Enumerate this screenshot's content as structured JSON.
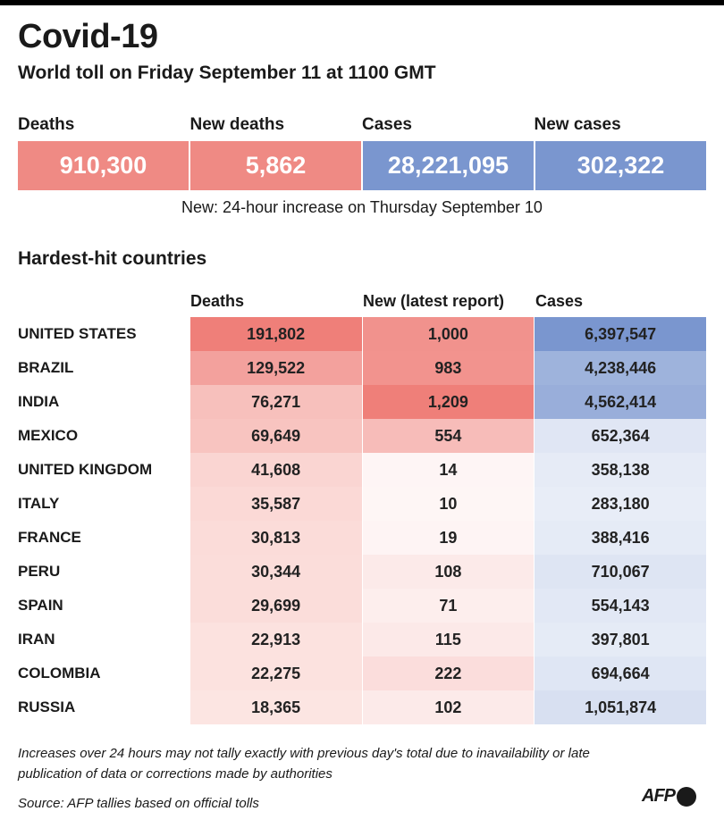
{
  "header": {
    "title": "Covid-19",
    "subtitle": "World toll on Friday September 11 at 1100 GMT"
  },
  "summary": {
    "items": [
      {
        "label": "Deaths",
        "value": "910,300",
        "color": "#ef8a84"
      },
      {
        "label": "New deaths",
        "value": "5,862",
        "color": "#ef8a84"
      },
      {
        "label": "Cases",
        "value": "28,221,095",
        "color": "#7a96cf"
      },
      {
        "label": "New cases",
        "value": "302,322",
        "color": "#7a96cf"
      }
    ],
    "note": "New: 24-hour increase on Thursday September 10"
  },
  "section_title": "Hardest-hit countries",
  "chart_data": {
    "type": "table",
    "title": "Hardest-hit countries",
    "columns": [
      "Deaths",
      "New (latest report)",
      "Cases"
    ],
    "rows": [
      {
        "country": "UNITED STATES",
        "deaths": "191,802",
        "new": "1,000",
        "cases": "6,397,547"
      },
      {
        "country": "BRAZIL",
        "deaths": "129,522",
        "new": "983",
        "cases": "4,238,446"
      },
      {
        "country": "INDIA",
        "deaths": "76,271",
        "new": "1,209",
        "cases": "4,562,414"
      },
      {
        "country": "MEXICO",
        "deaths": "69,649",
        "new": "554",
        "cases": "652,364"
      },
      {
        "country": "UNITED KINGDOM",
        "deaths": "41,608",
        "new": "14",
        "cases": "358,138"
      },
      {
        "country": "ITALY",
        "deaths": "35,587",
        "new": "10",
        "cases": "283,180"
      },
      {
        "country": "FRANCE",
        "deaths": "30,813",
        "new": "19",
        "cases": "388,416"
      },
      {
        "country": "PERU",
        "deaths": "30,344",
        "new": "108",
        "cases": "710,067"
      },
      {
        "country": "SPAIN",
        "deaths": "29,699",
        "new": "71",
        "cases": "554,143"
      },
      {
        "country": "IRAN",
        "deaths": "22,913",
        "new": "115",
        "cases": "397,801"
      },
      {
        "country": "COLOMBIA",
        "deaths": "22,275",
        "new": "222",
        "cases": "694,664"
      },
      {
        "country": "RUSSIA",
        "deaths": "18,365",
        "new": "102",
        "cases": "1,051,874"
      }
    ],
    "heat_colors": {
      "deaths_new": "#ef7f79",
      "cases": "#7a96cf"
    }
  },
  "footer": {
    "note": "Increases over 24 hours may not tally exactly with previous day's total due to inavailability or late publication of data or corrections made by authorities",
    "source": "Source: AFP tallies based on official tolls",
    "logo": "AFP"
  }
}
